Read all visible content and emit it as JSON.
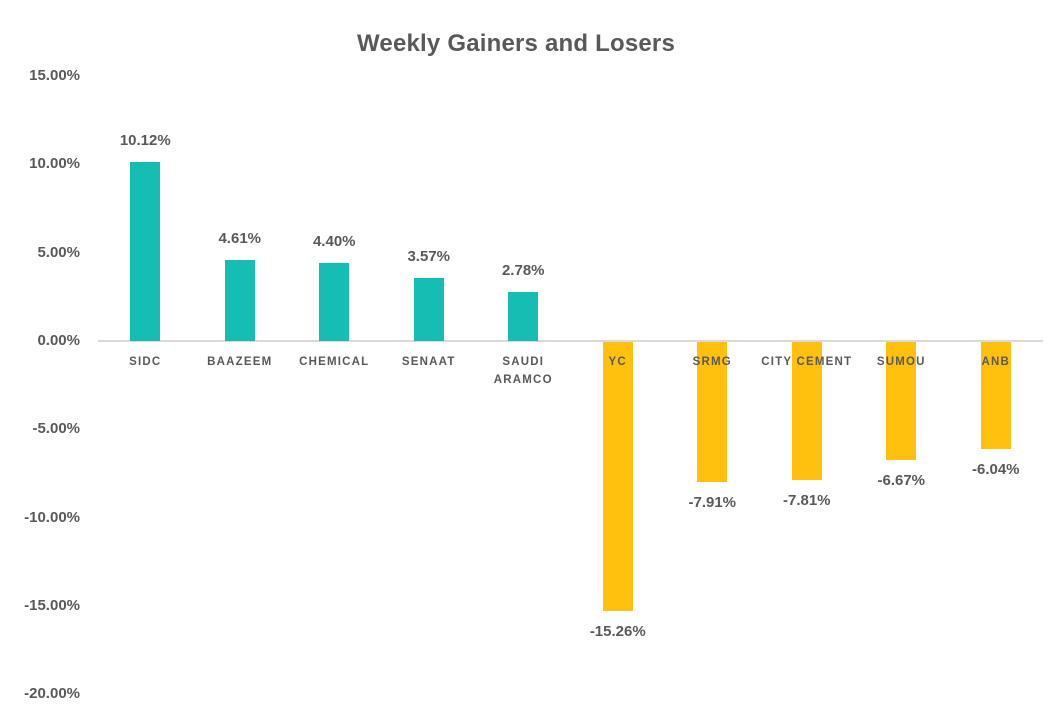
{
  "chart_data": {
    "type": "bar",
    "title": "Weekly Gainers and Losers",
    "xlabel": "",
    "ylabel": "",
    "categories": [
      "SIDC",
      "BAAZEEM",
      "CHEMICAL",
      "SENAAT",
      "SAUDI ARAMCO",
      "YC",
      "SRMG",
      "CITY CEMENT",
      "SUMOU",
      "ANB"
    ],
    "category_label_lines": [
      [
        "SIDC"
      ],
      [
        "BAAZEEM"
      ],
      [
        "CHEMICAL"
      ],
      [
        "SENAAT"
      ],
      [
        "SAUDI",
        "ARAMCO"
      ],
      [
        "YC"
      ],
      [
        "SRMG"
      ],
      [
        "CITY CEMENT"
      ],
      [
        "SUMOU"
      ],
      [
        "ANB"
      ]
    ],
    "values": [
      10.12,
      4.61,
      4.4,
      3.57,
      2.78,
      -15.26,
      -7.91,
      -7.81,
      -6.67,
      -6.04
    ],
    "value_labels": [
      "10.12%",
      "4.61%",
      "4.40%",
      "3.57%",
      "2.78%",
      "-15.26%",
      "-7.91%",
      "-7.81%",
      "-6.67%",
      "-6.04%"
    ],
    "y_ticks": [
      {
        "value": 15,
        "label": "15.00%"
      },
      {
        "value": 10,
        "label": "10.00%"
      },
      {
        "value": 5,
        "label": "5.00%"
      },
      {
        "value": 0,
        "label": "0.00%"
      },
      {
        "value": -5,
        "label": "-5.00%"
      },
      {
        "value": -10,
        "label": "-10.00%"
      },
      {
        "value": -15,
        "label": "-15.00%"
      },
      {
        "value": -20,
        "label": "-20.00%"
      }
    ],
    "ylim": [
      -20,
      15
    ],
    "grid": false,
    "legend": "none",
    "colors": {
      "gainer_bar": "#15BDB2",
      "loser_bar": "#FFC00E",
      "text": "#595959",
      "axis_line": "#D9D9D9",
      "background": "#FFFFFF"
    }
  }
}
